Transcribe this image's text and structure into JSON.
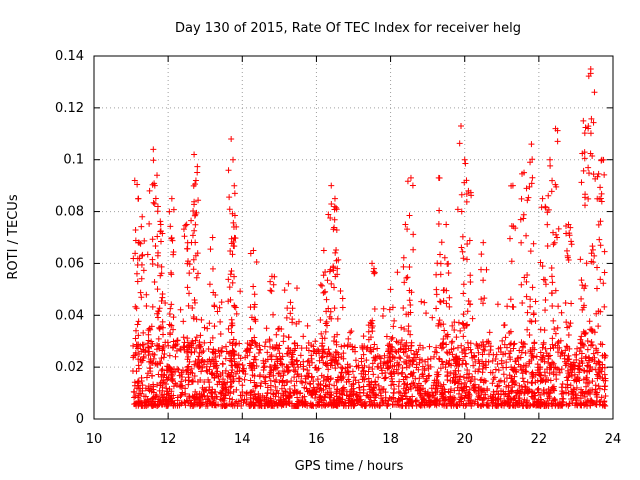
{
  "chart_data": {
    "type": "scatter",
    "title": "Day 130 of 2015, Rate Of TEC Index for receiver helg",
    "xlabel": "GPS time / hours",
    "ylabel": "ROTI / TECUs",
    "xlim": [
      10,
      24
    ],
    "ylim": [
      0,
      0.14
    ],
    "grid": true,
    "x_ticks": [
      {
        "value": 10,
        "label": "10"
      },
      {
        "value": 12,
        "label": "12"
      },
      {
        "value": 14,
        "label": "14"
      },
      {
        "value": 16,
        "label": "16"
      },
      {
        "value": 18,
        "label": "18"
      },
      {
        "value": 20,
        "label": "20"
      },
      {
        "value": 22,
        "label": "22"
      },
      {
        "value": 24,
        "label": "24"
      }
    ],
    "y_ticks": [
      {
        "value": 0,
        "label": "0"
      },
      {
        "value": 0.02,
        "label": "0.02"
      },
      {
        "value": 0.04,
        "label": "0.04"
      },
      {
        "value": 0.06,
        "label": "0.06"
      },
      {
        "value": 0.08,
        "label": "0.08"
      },
      {
        "value": 0.1,
        "label": "0.1"
      },
      {
        "value": 0.12,
        "label": "0.12"
      },
      {
        "value": 0.14,
        "label": "0.14"
      }
    ],
    "marker": "+",
    "series": [
      {
        "name": "ROTI",
        "color": "#ff0000",
        "x_range": [
          11.05,
          23.8
        ],
        "typical_range": [
          0.005,
          0.03
        ],
        "peaks": [
          {
            "x": 11.1,
            "y": 0.092
          },
          {
            "x": 11.2,
            "y": 0.085
          },
          {
            "x": 11.3,
            "y": 0.078
          },
          {
            "x": 11.5,
            "y": 0.088
          },
          {
            "x": 11.6,
            "y": 0.104
          },
          {
            "x": 11.7,
            "y": 0.094
          },
          {
            "x": 11.8,
            "y": 0.075
          },
          {
            "x": 12.1,
            "y": 0.085
          },
          {
            "x": 12.5,
            "y": 0.075
          },
          {
            "x": 12.7,
            "y": 0.102
          },
          {
            "x": 12.75,
            "y": 0.092
          },
          {
            "x": 13.2,
            "y": 0.07
          },
          {
            "x": 13.7,
            "y": 0.108
          },
          {
            "x": 13.75,
            "y": 0.1
          },
          {
            "x": 13.8,
            "y": 0.087
          },
          {
            "x": 14.3,
            "y": 0.065
          },
          {
            "x": 14.8,
            "y": 0.055
          },
          {
            "x": 15.3,
            "y": 0.045
          },
          {
            "x": 16.2,
            "y": 0.065
          },
          {
            "x": 16.4,
            "y": 0.09
          },
          {
            "x": 16.5,
            "y": 0.085
          },
          {
            "x": 17.5,
            "y": 0.06
          },
          {
            "x": 18.0,
            "y": 0.05
          },
          {
            "x": 18.4,
            "y": 0.075
          },
          {
            "x": 18.55,
            "y": 0.093
          },
          {
            "x": 19.3,
            "y": 0.093
          },
          {
            "x": 19.5,
            "y": 0.075
          },
          {
            "x": 19.9,
            "y": 0.113
          },
          {
            "x": 20.0,
            "y": 0.1
          },
          {
            "x": 20.1,
            "y": 0.088
          },
          {
            "x": 20.5,
            "y": 0.068
          },
          {
            "x": 21.3,
            "y": 0.09
          },
          {
            "x": 21.6,
            "y": 0.095
          },
          {
            "x": 21.8,
            "y": 0.106
          },
          {
            "x": 22.1,
            "y": 0.085
          },
          {
            "x": 22.3,
            "y": 0.1
          },
          {
            "x": 22.45,
            "y": 0.112
          },
          {
            "x": 22.8,
            "y": 0.075
          },
          {
            "x": 23.2,
            "y": 0.115
          },
          {
            "x": 23.4,
            "y": 0.135
          },
          {
            "x": 23.5,
            "y": 0.126
          },
          {
            "x": 23.7,
            "y": 0.1
          }
        ]
      }
    ]
  }
}
